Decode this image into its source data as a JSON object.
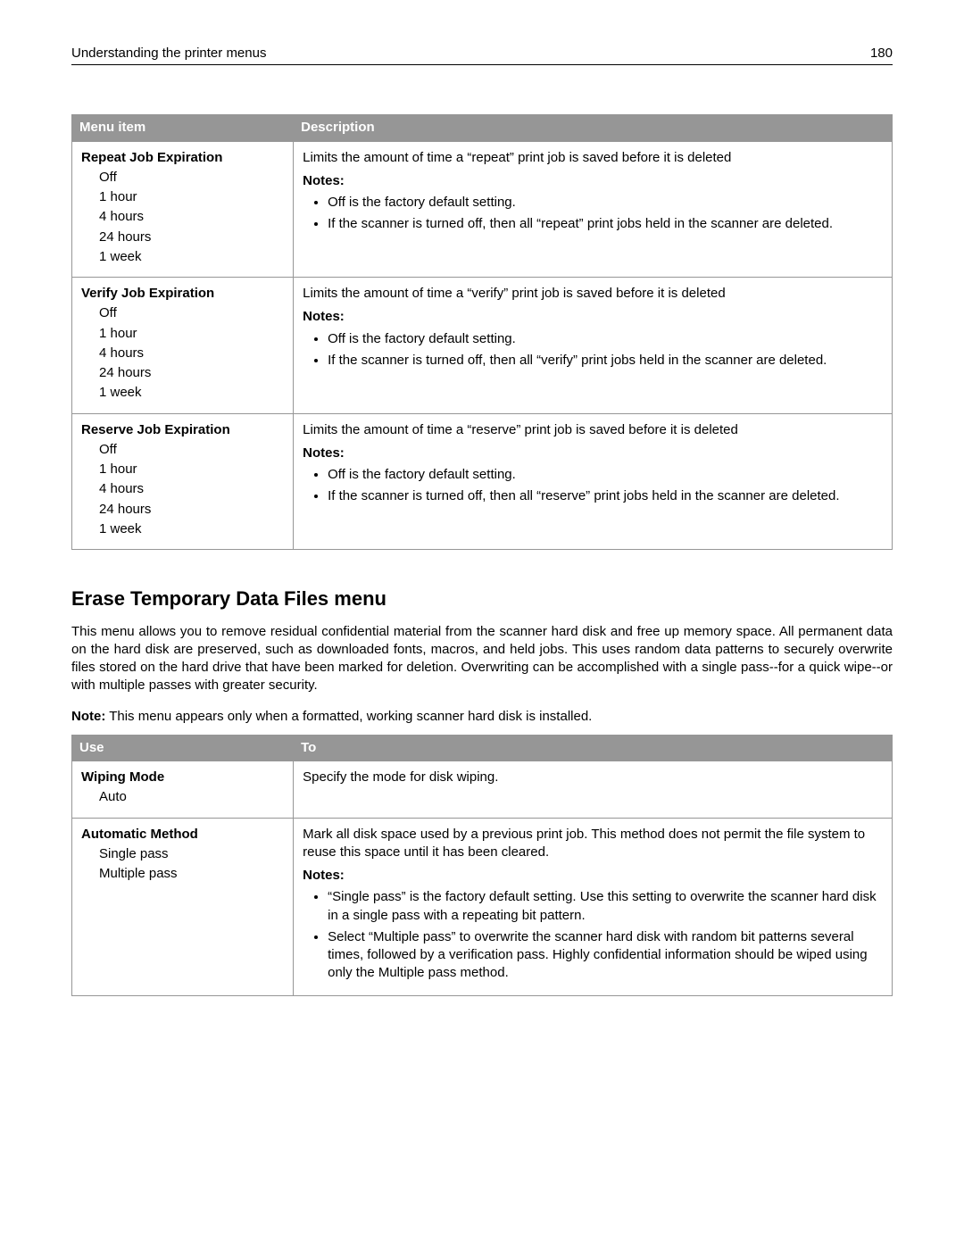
{
  "header": {
    "title": "Understanding the printer menus",
    "page": "180"
  },
  "table1": {
    "headers": [
      "Menu item",
      "Description"
    ],
    "rows": [
      {
        "title": "Repeat Job Expiration",
        "options": [
          "Off",
          "1 hour",
          "4 hours",
          "24 hours",
          "1 week"
        ],
        "desc": "Limits the amount of time a “repeat” print job is saved before it is deleted",
        "notes_label": "Notes:",
        "notes": [
          "Off is the factory default setting.",
          "If the scanner is turned off, then all “repeat” print jobs held in the scanner are deleted."
        ]
      },
      {
        "title": "Verify Job Expiration",
        "options": [
          "Off",
          "1 hour",
          "4 hours",
          "24 hours",
          "1 week"
        ],
        "desc": "Limits the amount of time a “verify” print job is saved before it is deleted",
        "notes_label": "Notes:",
        "notes": [
          "Off is the factory default setting.",
          "If the scanner is turned off, then all “verify” print jobs held in the scanner are deleted."
        ]
      },
      {
        "title": "Reserve Job Expiration",
        "options": [
          "Off",
          "1 hour",
          "4 hours",
          "24 hours",
          "1 week"
        ],
        "desc": "Limits the amount of time a “reserve” print job is saved before it is deleted",
        "notes_label": "Notes:",
        "notes": [
          "Off is the factory default setting.",
          "If the scanner is turned off, then all “reserve” print jobs held in the scanner are deleted."
        ]
      }
    ]
  },
  "section": {
    "heading": "Erase Temporary Data Files menu",
    "body": "This menu allows you to remove residual confidential material from the scanner hard disk and free up memory space. All permanent data on the hard disk are preserved, such as downloaded fonts, macros, and held jobs. This uses random data patterns to securely overwrite files stored on the hard drive that have been marked for deletion. Overwriting can be accomplished with a single pass‑‑for a quick wipe‑‑or with multiple passes with greater security.",
    "note_prefix": "Note:",
    "note_text": " This menu appears only when a formatted, working scanner hard disk is installed."
  },
  "table2": {
    "headers": [
      "Use",
      "To"
    ],
    "rows": [
      {
        "title": "Wiping Mode",
        "options": [
          "Auto"
        ],
        "desc": "Specify the mode for disk wiping.",
        "notes_label": "",
        "notes": []
      },
      {
        "title": "Automatic Method",
        "options": [
          "Single pass",
          "Multiple pass"
        ],
        "desc": "Mark all disk space used by a previous print job. This method does not permit the file system to reuse this space until it has been cleared.",
        "notes_label": "Notes:",
        "notes": [
          "“Single pass” is the factory default setting. Use this setting to overwrite the scanner hard disk in a single pass with a repeating bit pattern.",
          "Select “Multiple pass” to overwrite the scanner hard disk with random bit patterns several times, followed by a verification pass. Highly confidential information should be wiped using only the Multiple pass method."
        ]
      }
    ]
  }
}
